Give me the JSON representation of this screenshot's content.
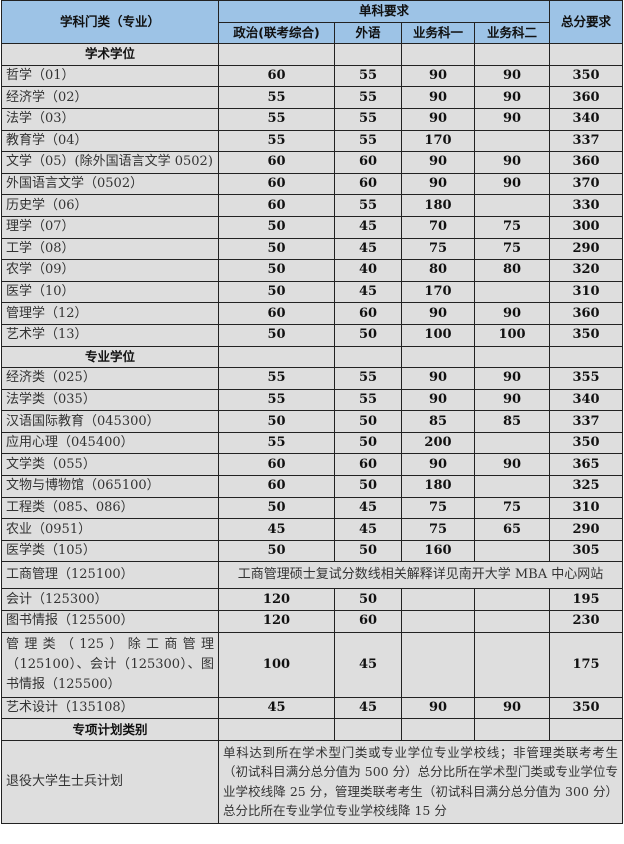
{
  "header": {
    "category": "学科门类（专业）",
    "single_req": "单科要求",
    "total_req": "总分要求",
    "subjects": [
      "政治(联考综合)",
      "外语",
      "业务科一",
      "业务科二"
    ]
  },
  "sections": [
    {
      "title": "学术学位",
      "rows": [
        {
          "name": "哲学（01）",
          "v": [
            "60",
            "55",
            "90",
            "90",
            "350"
          ]
        },
        {
          "name": "经济学（02）",
          "v": [
            "55",
            "55",
            "90",
            "90",
            "360"
          ]
        },
        {
          "name": "法学（03）",
          "v": [
            "55",
            "55",
            "90",
            "90",
            "340"
          ]
        },
        {
          "name": "教育学（04）",
          "v": [
            "55",
            "55",
            "170",
            "",
            "337"
          ]
        },
        {
          "name": "文学（05）(除外国语言文学 0502)",
          "v": [
            "60",
            "60",
            "90",
            "90",
            "360"
          ]
        },
        {
          "name": "外国语言文学（0502）",
          "v": [
            "60",
            "60",
            "90",
            "90",
            "370"
          ]
        },
        {
          "name": "历史学（06）",
          "v": [
            "60",
            "55",
            "180",
            "",
            "330"
          ]
        },
        {
          "name": "理学（07）",
          "v": [
            "50",
            "45",
            "70",
            "75",
            "300"
          ]
        },
        {
          "name": "工学（08）",
          "v": [
            "50",
            "45",
            "75",
            "75",
            "290"
          ]
        },
        {
          "name": "农学（09）",
          "v": [
            "50",
            "40",
            "80",
            "80",
            "320"
          ]
        },
        {
          "name": "医学（10）",
          "v": [
            "50",
            "45",
            "170",
            "",
            "310"
          ]
        },
        {
          "name": "管理学（12）",
          "v": [
            "60",
            "60",
            "90",
            "90",
            "360"
          ]
        },
        {
          "name": "艺术学（13）",
          "v": [
            "50",
            "50",
            "100",
            "100",
            "350"
          ]
        }
      ]
    },
    {
      "title": "专业学位",
      "rows": [
        {
          "name": "经济类（025）",
          "v": [
            "55",
            "55",
            "90",
            "90",
            "355"
          ]
        },
        {
          "name": "法学类（035）",
          "v": [
            "55",
            "55",
            "90",
            "90",
            "340"
          ]
        },
        {
          "name": "汉语国际教育（045300）",
          "v": [
            "50",
            "50",
            "85",
            "85",
            "337"
          ]
        },
        {
          "name": "应用心理（045400）",
          "v": [
            "55",
            "50",
            "200",
            "",
            "350"
          ]
        },
        {
          "name": "文学类（055）",
          "v": [
            "60",
            "60",
            "90",
            "90",
            "365"
          ]
        },
        {
          "name": "文物与博物馆（065100）",
          "v": [
            "60",
            "50",
            "180",
            "",
            "325"
          ]
        },
        {
          "name": "工程类（085、086）",
          "v": [
            "50",
            "45",
            "75",
            "75",
            "310"
          ]
        },
        {
          "name": "农业（0951）",
          "v": [
            "45",
            "45",
            "75",
            "65",
            "290"
          ]
        },
        {
          "name": "医学类（105）",
          "v": [
            "50",
            "50",
            "160",
            "",
            "305"
          ]
        },
        {
          "name": "工商管理（125100）",
          "span": "工商管理硕士复试分数线相关解释详见南开大学 MBA 中心网站"
        },
        {
          "name": "会计（125300）",
          "v": [
            "120",
            "50",
            "",
            "",
            "195"
          ]
        },
        {
          "name": "图书情报（125500）",
          "v": [
            "120",
            "60",
            "",
            "",
            "230"
          ]
        },
        {
          "name": "管理类（125）除工商管理（125100）、会计（125300）、图书情报（125500）",
          "v": [
            "100",
            "45",
            "",
            "",
            "175"
          ],
          "multi": true
        },
        {
          "name": "艺术设计（135108）",
          "v": [
            "45",
            "45",
            "90",
            "90",
            "350"
          ]
        }
      ]
    },
    {
      "title": "专项计划类别",
      "rows": [
        {
          "name": "退役大学生士兵计划",
          "span": "单科达到所在学术型门类或专业学位专业学校线；非管理类联考考生（初试科目满分总分值为 500 分）总分比所在学术型门类或专业学位专业学校线降 25 分，管理类联考考生（初试科目满分总分值为 300 分）总分比所在专业学位专业学校线降 15 分",
          "note": true
        }
      ]
    }
  ]
}
